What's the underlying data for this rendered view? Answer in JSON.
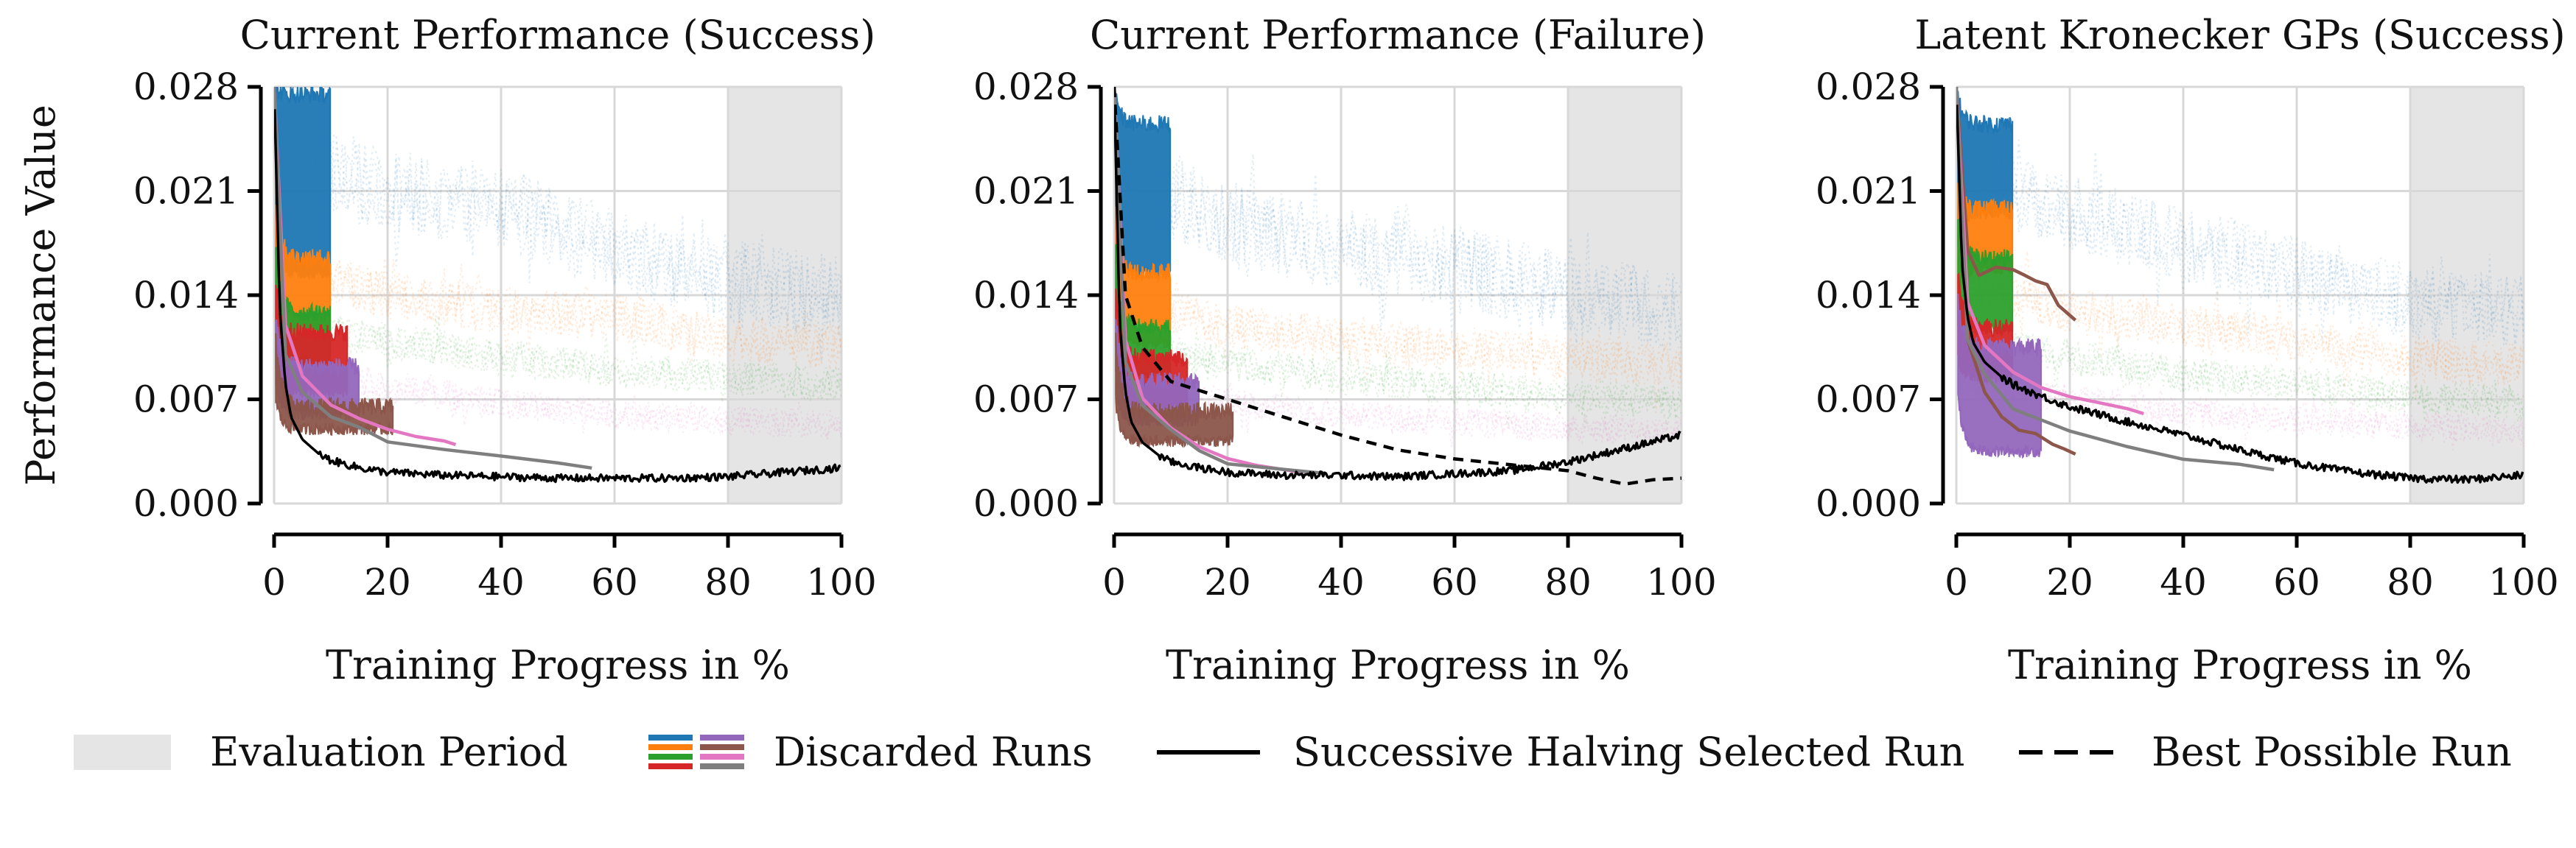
{
  "chart_data": [
    {
      "type": "line",
      "title": "Current Performance (Success)",
      "xlabel": "Training Progress in %",
      "ylabel": "Performance Value",
      "xlim": [
        0,
        100
      ],
      "ylim": [
        0,
        0.028
      ],
      "xticks": [
        "0",
        "20",
        "40",
        "60",
        "80",
        "100"
      ],
      "yticks": [
        "0.000",
        "0.007",
        "0.014",
        "0.021",
        "0.028"
      ],
      "grid": true,
      "evaluation_period": [
        80,
        100
      ],
      "background_noise": [
        {
          "color": "#1f77b4",
          "level": [
            [
              0,
              0.024
            ],
            [
              20,
              0.021
            ],
            [
              40,
              0.02
            ],
            [
              60,
              0.017
            ],
            [
              80,
              0.015
            ],
            [
              100,
              0.014
            ]
          ],
          "amp": 0.0028
        },
        {
          "color": "#ff7f0e",
          "level": [
            [
              0,
              0.016
            ],
            [
              20,
              0.014
            ],
            [
              40,
              0.013
            ],
            [
              60,
              0.0125
            ],
            [
              80,
              0.011
            ],
            [
              100,
              0.0105
            ]
          ],
          "amp": 0.0016
        },
        {
          "color": "#2ca02c",
          "level": [
            [
              0,
              0.012
            ],
            [
              20,
              0.011
            ],
            [
              40,
              0.0098
            ],
            [
              60,
              0.009
            ],
            [
              80,
              0.0085
            ],
            [
              100,
              0.008
            ]
          ],
          "amp": 0.0012
        },
        {
          "color": "#e377c2",
          "level": [
            [
              0,
              0.009
            ],
            [
              20,
              0.0078
            ],
            [
              40,
              0.0068
            ],
            [
              60,
              0.006
            ],
            [
              80,
              0.0056
            ],
            [
              100,
              0.0052
            ]
          ],
          "amp": 0.001
        }
      ],
      "discarded_bands": [
        {
          "color": "#1f77b4",
          "x_end": 10,
          "lower": 0.0155,
          "upper": 0.0275,
          "start": 0.028
        },
        {
          "color": "#ff7f0e",
          "x_end": 10,
          "lower": 0.0115,
          "upper": 0.0165,
          "start": 0.022
        },
        {
          "color": "#2ca02c",
          "x_end": 10,
          "lower": 0.0095,
          "upper": 0.0128,
          "start": 0.019
        },
        {
          "color": "#d62728",
          "x_end": 13,
          "lower": 0.0075,
          "upper": 0.0115,
          "start": 0.016
        },
        {
          "color": "#9467bd",
          "x_end": 15,
          "lower": 0.006,
          "upper": 0.0092,
          "start": 0.014
        },
        {
          "color": "#8c564b",
          "x_end": 21,
          "lower": 0.005,
          "upper": 0.0065,
          "start": 0.013
        }
      ],
      "discarded_lines": [
        {
          "color": "#e377c2",
          "x": [
            0,
            2,
            5,
            10,
            15,
            20,
            25,
            30,
            32
          ],
          "y": [
            0.028,
            0.012,
            0.0085,
            0.0068,
            0.0057,
            0.0049,
            0.0044,
            0.0041,
            0.0039
          ]
        },
        {
          "color": "#7f7f7f",
          "x": [
            0,
            2,
            5,
            10,
            15,
            20,
            30,
            40,
            50,
            56
          ],
          "y": [
            0.028,
            0.01,
            0.0073,
            0.0058,
            0.005,
            0.0043,
            0.0036,
            0.0031,
            0.0026,
            0.0024
          ]
        }
      ],
      "selected_run": {
        "x": [
          0,
          1,
          2,
          3,
          5,
          8,
          10,
          15,
          20,
          30,
          40,
          50,
          60,
          70,
          80,
          90,
          100
        ],
        "y": [
          0.028,
          0.013,
          0.008,
          0.0058,
          0.0043,
          0.0033,
          0.0029,
          0.0024,
          0.0021,
          0.0019,
          0.0018,
          0.0017,
          0.0017,
          0.0017,
          0.0018,
          0.0021,
          0.0024
        ]
      },
      "best_possible_run": null
    },
    {
      "type": "line",
      "title": "Current Performance (Failure)",
      "xlabel": "Training Progress in %",
      "ylabel": "",
      "xlim": [
        0,
        100
      ],
      "ylim": [
        0,
        0.028
      ],
      "xticks": [
        "0",
        "20",
        "40",
        "60",
        "80",
        "100"
      ],
      "yticks": [
        "0.000",
        "0.007",
        "0.014",
        "0.021",
        "0.028"
      ],
      "grid": true,
      "evaluation_period": [
        80,
        100
      ],
      "background_noise": [
        {
          "color": "#1f77b4",
          "level": [
            [
              0,
              0.022
            ],
            [
              20,
              0.019
            ],
            [
              40,
              0.017
            ],
            [
              60,
              0.016
            ],
            [
              80,
              0.014
            ],
            [
              100,
              0.013
            ]
          ],
          "amp": 0.0028
        },
        {
          "color": "#ff7f0e",
          "level": [
            [
              0,
              0.014
            ],
            [
              20,
              0.012
            ],
            [
              40,
              0.011
            ],
            [
              60,
              0.0105
            ],
            [
              80,
              0.0098
            ],
            [
              100,
              0.0092
            ]
          ],
          "amp": 0.0015
        },
        {
          "color": "#2ca02c",
          "level": [
            [
              0,
              0.011
            ],
            [
              20,
              0.0095
            ],
            [
              40,
              0.0085
            ],
            [
              60,
              0.0078
            ],
            [
              80,
              0.0072
            ],
            [
              100,
              0.0068
            ]
          ],
          "amp": 0.0012
        },
        {
          "color": "#e377c2",
          "level": [
            [
              0,
              0.008
            ],
            [
              20,
              0.0068
            ],
            [
              40,
              0.006
            ],
            [
              60,
              0.0055
            ],
            [
              80,
              0.0051
            ],
            [
              100,
              0.0048
            ]
          ],
          "amp": 0.001
        }
      ],
      "discarded_bands": [
        {
          "color": "#1f77b4",
          "x_end": 10,
          "lower": 0.0155,
          "upper": 0.0255,
          "start": 0.028
        },
        {
          "color": "#ff7f0e",
          "x_end": 10,
          "lower": 0.0108,
          "upper": 0.0155,
          "start": 0.022
        },
        {
          "color": "#2ca02c",
          "x_end": 10,
          "lower": 0.0088,
          "upper": 0.0118,
          "start": 0.019
        },
        {
          "color": "#d62728",
          "x_end": 13,
          "lower": 0.0065,
          "upper": 0.0098,
          "start": 0.016
        },
        {
          "color": "#9467bd",
          "x_end": 15,
          "lower": 0.0055,
          "upper": 0.0082,
          "start": 0.014
        },
        {
          "color": "#8c564b",
          "x_end": 21,
          "lower": 0.0042,
          "upper": 0.0062,
          "start": 0.013
        }
      ],
      "discarded_lines": [
        {
          "color": "#e377c2",
          "x": [
            0,
            2,
            5,
            10,
            15,
            20,
            25,
            33
          ],
          "y": [
            0.028,
            0.011,
            0.0072,
            0.0052,
            0.0039,
            0.003,
            0.0026,
            0.0022
          ]
        },
        {
          "color": "#7f7f7f",
          "x": [
            0,
            2,
            5,
            10,
            15,
            20,
            30,
            37
          ],
          "y": [
            0.028,
            0.0095,
            0.0065,
            0.0048,
            0.0036,
            0.0028,
            0.0023,
            0.002
          ]
        }
      ],
      "selected_run": {
        "x": [
          0,
          1,
          2,
          3,
          5,
          8,
          10,
          15,
          20,
          30,
          40,
          50,
          60,
          70,
          80,
          90,
          100
        ],
        "y": [
          0.028,
          0.012,
          0.0075,
          0.0055,
          0.0041,
          0.0032,
          0.0028,
          0.0024,
          0.0021,
          0.0019,
          0.0019,
          0.0018,
          0.002,
          0.0022,
          0.0028,
          0.0037,
          0.0046
        ]
      },
      "best_possible_run": {
        "x": [
          0,
          2,
          5,
          10,
          15,
          20,
          30,
          40,
          50,
          60,
          70,
          80,
          85,
          90,
          95,
          100
        ],
        "y": [
          0.028,
          0.014,
          0.0105,
          0.0082,
          0.0076,
          0.007,
          0.0058,
          0.0046,
          0.0036,
          0.003,
          0.0026,
          0.0022,
          0.0017,
          0.0013,
          0.0016,
          0.0017
        ]
      }
    },
    {
      "type": "line",
      "title": "Latent Kronecker GPs (Success)",
      "xlabel": "Training Progress in %",
      "ylabel": "",
      "xlim": [
        0,
        100
      ],
      "ylim": [
        0,
        0.028
      ],
      "xticks": [
        "0",
        "20",
        "40",
        "60",
        "80",
        "100"
      ],
      "yticks": [
        "0.000",
        "0.007",
        "0.014",
        "0.021",
        "0.028"
      ],
      "grid": true,
      "evaluation_period": [
        80,
        100
      ],
      "background_noise": [
        {
          "color": "#1f77b4",
          "level": [
            [
              0,
              0.022
            ],
            [
              20,
              0.0195
            ],
            [
              40,
              0.0175
            ],
            [
              60,
              0.0155
            ],
            [
              80,
              0.0135
            ],
            [
              100,
              0.013
            ]
          ],
          "amp": 0.0026
        },
        {
          "color": "#ff7f0e",
          "level": [
            [
              0,
              0.015
            ],
            [
              20,
              0.013
            ],
            [
              40,
              0.012
            ],
            [
              60,
              0.011
            ],
            [
              80,
              0.0098
            ],
            [
              100,
              0.0092
            ]
          ],
          "amp": 0.0015
        },
        {
          "color": "#2ca02c",
          "level": [
            [
              0,
              0.011
            ],
            [
              20,
              0.0098
            ],
            [
              40,
              0.0088
            ],
            [
              60,
              0.008
            ],
            [
              80,
              0.0072
            ],
            [
              100,
              0.0068
            ]
          ],
          "amp": 0.0012
        },
        {
          "color": "#e377c2",
          "level": [
            [
              0,
              0.008
            ],
            [
              20,
              0.007
            ],
            [
              40,
              0.0062
            ],
            [
              60,
              0.0056
            ],
            [
              80,
              0.0052
            ],
            [
              100,
              0.0048
            ]
          ],
          "amp": 0.001
        }
      ],
      "discarded_bands": [
        {
          "color": "#1f77b4",
          "x_end": 10,
          "lower": 0.0195,
          "upper": 0.0255,
          "start": 0.028
        },
        {
          "color": "#ff7f0e",
          "x_end": 10,
          "lower": 0.0158,
          "upper": 0.0198,
          "start": 0.023
        },
        {
          "color": "#2ca02c",
          "x_end": 10,
          "lower": 0.0118,
          "upper": 0.0165,
          "start": 0.02
        },
        {
          "color": "#d62728",
          "x_end": 10,
          "lower": 0.0085,
          "upper": 0.0118,
          "start": 0.017
        },
        {
          "color": "#9467bd",
          "x_end": 15,
          "lower": 0.0035,
          "upper": 0.0105,
          "start": 0.015
        }
      ],
      "discarded_lines": [
        {
          "color": "#8c564b",
          "x": [
            0,
            2,
            4,
            7,
            10,
            12,
            14,
            16,
            18,
            21
          ],
          "y": [
            0.028,
            0.017,
            0.0155,
            0.016,
            0.0158,
            0.0152,
            0.0148,
            0.0146,
            0.0135,
            0.0122
          ]
        },
        {
          "color": "#8c564b",
          "x": [
            0,
            2,
            5,
            8,
            11,
            14,
            17,
            19,
            21
          ],
          "y": [
            0.028,
            0.011,
            0.0075,
            0.006,
            0.0051,
            0.0045,
            0.004,
            0.0036,
            0.0034
          ]
        },
        {
          "color": "#e377c2",
          "x": [
            0,
            2,
            5,
            10,
            15,
            20,
            25,
            30,
            33
          ],
          "y": [
            0.028,
            0.0135,
            0.0105,
            0.0088,
            0.0078,
            0.0072,
            0.0067,
            0.0063,
            0.0061
          ]
        },
        {
          "color": "#7f7f7f",
          "x": [
            0,
            2,
            5,
            10,
            20,
            30,
            40,
            50,
            56
          ],
          "y": [
            0.028,
            0.011,
            0.0085,
            0.0065,
            0.0047,
            0.0037,
            0.003,
            0.0025,
            0.0023
          ]
        }
      ],
      "selected_run": {
        "x": [
          0,
          1,
          2,
          3,
          5,
          8,
          10,
          15,
          20,
          30,
          40,
          50,
          60,
          70,
          80,
          90,
          100
        ],
        "y": [
          0.028,
          0.016,
          0.0125,
          0.0108,
          0.0095,
          0.0085,
          0.008,
          0.0072,
          0.0065,
          0.0055,
          0.0046,
          0.0036,
          0.0027,
          0.0021,
          0.0017,
          0.0016,
          0.0019
        ]
      },
      "best_possible_run": null
    }
  ],
  "legend": {
    "placement": "bottom",
    "items": [
      {
        "label": "Evaluation Period",
        "kind": "patch",
        "color": "#e5e5e5"
      },
      {
        "label": "Discarded Runs",
        "kind": "multi",
        "colors": [
          "#1f77b4",
          "#ff7f0e",
          "#2ca02c",
          "#d62728",
          "#9467bd",
          "#8c564b",
          "#e377c2",
          "#7f7f7f"
        ]
      },
      {
        "label": "Successive Halving Selected Run",
        "kind": "solid",
        "color": "#000000"
      },
      {
        "label": "Best Possible Run",
        "kind": "dashed",
        "color": "#000000"
      }
    ]
  }
}
